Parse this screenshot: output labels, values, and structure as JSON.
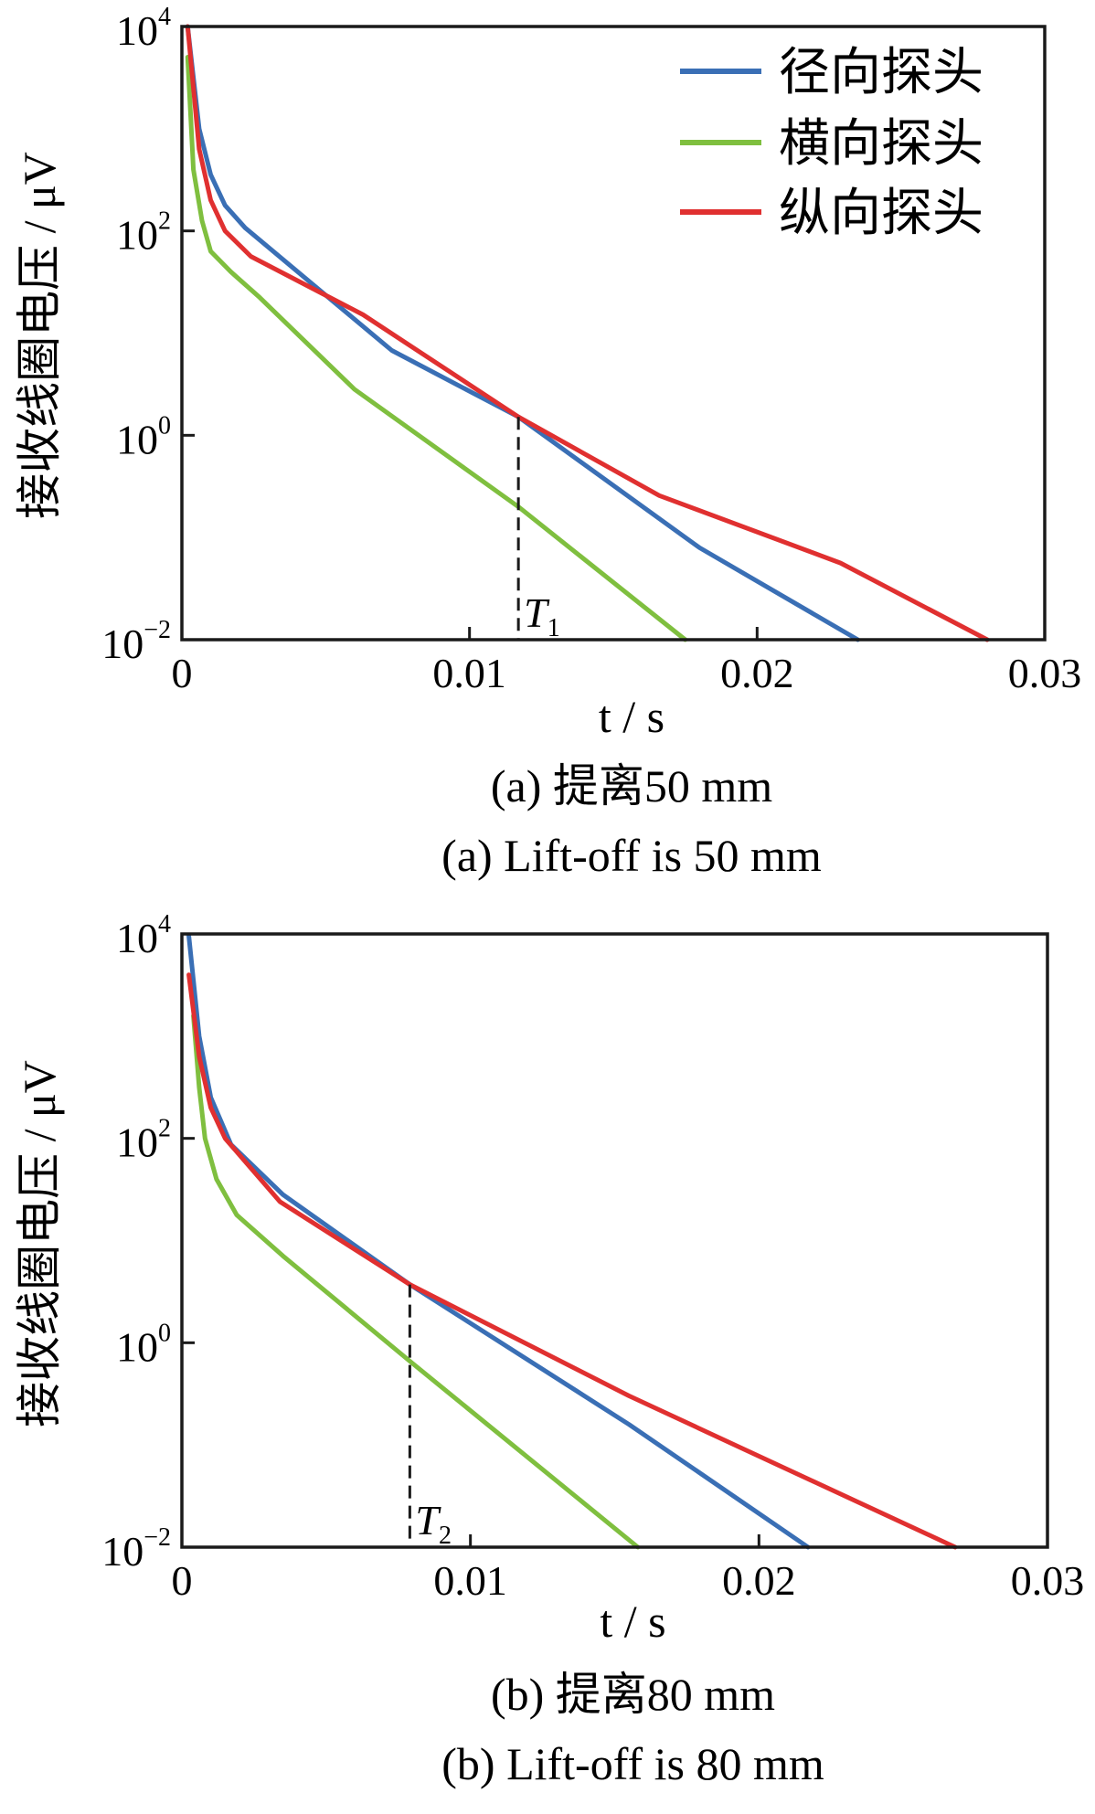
{
  "chart_data": [
    {
      "type": "line",
      "title": "(a)  提离50 mm",
      "subtitle": "(a)  Lift-off is 50 mm",
      "xlabel": "t / s",
      "ylabel": "接收线圈电压 / μV",
      "xscale": "linear",
      "yscale": "log",
      "xlim": [
        0,
        0.03
      ],
      "ylim_log10": [
        -2,
        4
      ],
      "xticks": [
        "0",
        "0.01",
        "0.02",
        "0.03"
      ],
      "yticks": [
        {
          "base": "10",
          "exp": "4"
        },
        {
          "base": "10",
          "exp": "2"
        },
        {
          "base": "10",
          "exp": "0"
        },
        {
          "base": "10",
          "exp": "−2"
        }
      ],
      "legend": {
        "placement": "top-right",
        "entries": [
          "径向探头",
          "横向探头",
          "纵向探头"
        ]
      },
      "marker": {
        "label": "T",
        "sub": "1",
        "t": 0.0117,
        "log10_v": 0.18
      },
      "series": [
        {
          "name": "径向探头",
          "color": "#3a6fb5",
          "points_log10": [
            [
              0.0002,
              4
            ],
            [
              0.0006,
              3.0
            ],
            [
              0.001,
              2.55
            ],
            [
              0.0015,
              2.25
            ],
            [
              0.0022,
              2.03
            ],
            [
              0.0073,
              0.83
            ],
            [
              0.0117,
              0.18
            ],
            [
              0.018,
              -1.1
            ],
            [
              0.0235,
              -2
            ]
          ]
        },
        {
          "name": "横向探头",
          "color": "#7fbf3f",
          "points_log10": [
            [
              0.0002,
              3.7
            ],
            [
              0.0004,
              2.6
            ],
            [
              0.0007,
              2.1
            ],
            [
              0.001,
              1.8
            ],
            [
              0.0017,
              1.6
            ],
            [
              0.0027,
              1.35
            ],
            [
              0.006,
              0.45
            ],
            [
              0.0117,
              -0.7
            ],
            [
              0.0175,
              -2
            ]
          ]
        },
        {
          "name": "纵向探头",
          "color": "#e03030",
          "points_log10": [
            [
              0.0002,
              4
            ],
            [
              0.0006,
              2.8
            ],
            [
              0.001,
              2.3
            ],
            [
              0.0015,
              2.0
            ],
            [
              0.0024,
              1.75
            ],
            [
              0.0063,
              1.18
            ],
            [
              0.0117,
              0.18
            ],
            [
              0.0166,
              -0.59
            ],
            [
              0.0229,
              -1.25
            ],
            [
              0.028,
              -2
            ]
          ]
        }
      ]
    },
    {
      "type": "line",
      "title": "(b)  提离80 mm",
      "subtitle": "(b)  Lift-off is 80 mm",
      "xlabel": "t / s",
      "ylabel": "接收线圈电压 / μV",
      "xscale": "linear",
      "yscale": "log",
      "xlim": [
        0,
        0.03
      ],
      "ylim_log10": [
        -2,
        4
      ],
      "xticks": [
        "0",
        "0.01",
        "0.02",
        "0.03"
      ],
      "yticks": [
        {
          "base": "10",
          "exp": "4"
        },
        {
          "base": "10",
          "exp": "2"
        },
        {
          "base": "10",
          "exp": "0"
        },
        {
          "base": "10",
          "exp": "−2"
        }
      ],
      "marker": {
        "label": "T",
        "sub": "2",
        "t": 0.0079,
        "log10_v": 0.57
      },
      "series": [
        {
          "name": "径向探头",
          "color": "#3a6fb5",
          "points_log10": [
            [
              0.00024,
              3.98
            ],
            [
              0.0006,
              3.0
            ],
            [
              0.001,
              2.4
            ],
            [
              0.0017,
              1.94
            ],
            [
              0.0035,
              1.45
            ],
            [
              0.0079,
              0.57
            ],
            [
              0.0155,
              -0.8
            ],
            [
              0.0217,
              -2
            ]
          ]
        },
        {
          "name": "横向探头",
          "color": "#7fbf3f",
          "points_log10": [
            [
              0.0004,
              3.2
            ],
            [
              0.0006,
              2.5
            ],
            [
              0.0008,
              2.0
            ],
            [
              0.0012,
              1.6
            ],
            [
              0.0019,
              1.25
            ],
            [
              0.0035,
              0.85
            ],
            [
              0.0079,
              -0.18
            ],
            [
              0.0158,
              -2
            ]
          ]
        },
        {
          "name": "纵向探头",
          "color": "#e03030",
          "points_log10": [
            [
              0.00024,
              3.6
            ],
            [
              0.0006,
              2.8
            ],
            [
              0.001,
              2.3
            ],
            [
              0.0015,
              2.0
            ],
            [
              0.0034,
              1.38
            ],
            [
              0.0079,
              0.57
            ],
            [
              0.0155,
              -0.52
            ],
            [
              0.0268,
              -2
            ]
          ]
        }
      ]
    }
  ]
}
